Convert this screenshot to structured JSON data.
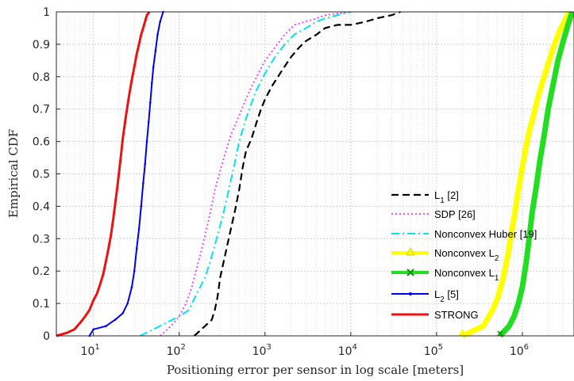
{
  "chart_data": {
    "type": "line",
    "xlabel": "Positioning error per sensor in log scale [meters]",
    "ylabel": "Empirical CDF",
    "x_scale": "log",
    "xlim": [
      3.7,
      4000000
    ],
    "ylim": [
      0,
      1
    ],
    "grid": true,
    "legend_position": "lower-right",
    "x_ticks": [
      {
        "value": 10,
        "base": "10",
        "exp": "1"
      },
      {
        "value": 100,
        "base": "10",
        "exp": "2"
      },
      {
        "value": 1000,
        "base": "10",
        "exp": "3"
      },
      {
        "value": 10000,
        "base": "10",
        "exp": "4"
      },
      {
        "value": 100000,
        "base": "10",
        "exp": "5"
      },
      {
        "value": 1000000,
        "base": "10",
        "exp": "6"
      }
    ],
    "y_ticks": [
      "0",
      "0.1",
      "0.2",
      "0.3",
      "0.4",
      "0.5",
      "0.6",
      "0.7",
      "0.8",
      "0.9",
      "1"
    ],
    "series": [
      {
        "name": "L1 [2]",
        "label_main": "L",
        "label_sub": "1",
        "label_tail": " [2]",
        "color": "#000000",
        "dash": "9,5",
        "width": 2.2,
        "marker": "none",
        "x": [
          150,
          200,
          240,
          260,
          280,
          300,
          350,
          400,
          450,
          500,
          550,
          600,
          700,
          800,
          900,
          1000,
          1200,
          1500,
          2000,
          2500,
          3000,
          4000,
          5000,
          7000,
          10000,
          15000,
          20000,
          30000,
          38000
        ],
        "y": [
          0,
          0.03,
          0.05,
          0.08,
          0.12,
          0.18,
          0.26,
          0.33,
          0.39,
          0.45,
          0.52,
          0.57,
          0.61,
          0.66,
          0.7,
          0.73,
          0.77,
          0.81,
          0.86,
          0.89,
          0.91,
          0.93,
          0.95,
          0.96,
          0.96,
          0.97,
          0.98,
          0.99,
          1.0
        ]
      },
      {
        "name": "SDP [26]",
        "label_main": "SDP [26]",
        "label_sub": "",
        "label_tail": "",
        "color": "#ff33ff",
        "dash": "2,3",
        "width": 1.8,
        "marker": "none",
        "x": [
          60,
          80,
          100,
          120,
          140,
          160,
          180,
          200,
          230,
          260,
          300,
          350,
          400,
          500,
          600,
          700,
          800,
          1000,
          1300,
          1700,
          2200,
          3000,
          4000,
          5000,
          7000,
          10000
        ],
        "y": [
          0,
          0.03,
          0.06,
          0.1,
          0.15,
          0.21,
          0.26,
          0.31,
          0.38,
          0.45,
          0.51,
          0.57,
          0.62,
          0.68,
          0.73,
          0.77,
          0.8,
          0.85,
          0.89,
          0.93,
          0.96,
          0.97,
          0.98,
          0.99,
          0.995,
          1.0
        ]
      },
      {
        "name": "Nonconvex Huber [19]",
        "label_main": "Nonconvex Huber [19]",
        "label_sub": "",
        "label_tail": "",
        "color": "#00e5ee",
        "dash": "10,4,2,4",
        "width": 2.0,
        "marker": "none",
        "x": [
          35,
          50,
          70,
          100,
          130,
          160,
          200,
          230,
          260,
          300,
          350,
          400,
          450,
          500,
          600,
          700,
          800,
          1000,
          1300,
          1700,
          2200,
          3000,
          4000,
          5000,
          7000,
          10000
        ],
        "y": [
          0,
          0.02,
          0.04,
          0.06,
          0.08,
          0.13,
          0.18,
          0.23,
          0.28,
          0.34,
          0.41,
          0.48,
          0.54,
          0.6,
          0.67,
          0.72,
          0.76,
          0.81,
          0.86,
          0.9,
          0.93,
          0.95,
          0.97,
          0.98,
          0.99,
          1.0
        ]
      },
      {
        "name": "Nonconvex L2",
        "label_main": "Nonconvex L",
        "label_sub": "2",
        "label_tail": "",
        "color": "#ffff00",
        "dash": "",
        "width": 7.0,
        "marker": "triangle",
        "x": [
          200000,
          350000,
          450000,
          520000,
          600000,
          680000,
          750000,
          820000,
          900000,
          1000000,
          1100000,
          1200000,
          1350000,
          1500000,
          1700000,
          2000000,
          2300000,
          2700000,
          3100000,
          3500000
        ],
        "y": [
          0,
          0.03,
          0.08,
          0.12,
          0.18,
          0.25,
          0.32,
          0.38,
          0.45,
          0.52,
          0.58,
          0.63,
          0.68,
          0.73,
          0.78,
          0.84,
          0.89,
          0.94,
          0.97,
          1.0
        ]
      },
      {
        "name": "Nonconvex L1",
        "label_main": "Nonconvex L",
        "label_sub": "1",
        "label_tail": "",
        "color": "#22dd22",
        "dash": "",
        "width": 7.0,
        "marker": "x",
        "x": [
          550000,
          700000,
          800000,
          900000,
          1000000,
          1100000,
          1200000,
          1300000,
          1450000,
          1600000,
          1800000,
          2000000,
          2300000,
          2600000,
          3000000,
          3400000,
          3800000
        ],
        "y": [
          0,
          0.03,
          0.06,
          0.1,
          0.15,
          0.22,
          0.3,
          0.38,
          0.46,
          0.54,
          0.62,
          0.7,
          0.78,
          0.85,
          0.91,
          0.96,
          1.0
        ]
      },
      {
        "name": "L2 [5]",
        "label_main": "L",
        "label_sub": "2",
        "label_tail": " [5]",
        "color": "#0000ee",
        "dash": "",
        "width": 2.0,
        "marker": "dot",
        "x": [
          9,
          10,
          14,
          18,
          22,
          25,
          28,
          30,
          32,
          34,
          36,
          38,
          40,
          42,
          44,
          46,
          48,
          50,
          53,
          56,
          60,
          65
        ],
        "y": [
          0,
          0.02,
          0.03,
          0.05,
          0.07,
          0.1,
          0.15,
          0.2,
          0.27,
          0.33,
          0.4,
          0.47,
          0.53,
          0.6,
          0.66,
          0.72,
          0.78,
          0.83,
          0.88,
          0.93,
          0.97,
          1.0
        ]
      },
      {
        "name": "STRONG",
        "label_main": "STRONG",
        "label_sub": "",
        "label_tail": "",
        "color": "#ee1111",
        "dash": "",
        "width": 3.0,
        "marker": "none",
        "x": [
          3.7,
          5,
          6,
          7,
          8,
          9,
          10,
          11,
          12,
          13,
          14,
          15,
          16,
          17,
          18,
          19,
          20,
          21,
          22,
          24,
          26,
          28,
          30,
          32,
          34,
          36,
          38,
          40,
          42,
          45
        ],
        "y": [
          0,
          0.01,
          0.02,
          0.04,
          0.06,
          0.08,
          0.11,
          0.13,
          0.16,
          0.19,
          0.23,
          0.27,
          0.31,
          0.36,
          0.41,
          0.46,
          0.51,
          0.56,
          0.61,
          0.68,
          0.74,
          0.79,
          0.83,
          0.87,
          0.9,
          0.93,
          0.95,
          0.97,
          0.99,
          1.0
        ]
      }
    ]
  }
}
